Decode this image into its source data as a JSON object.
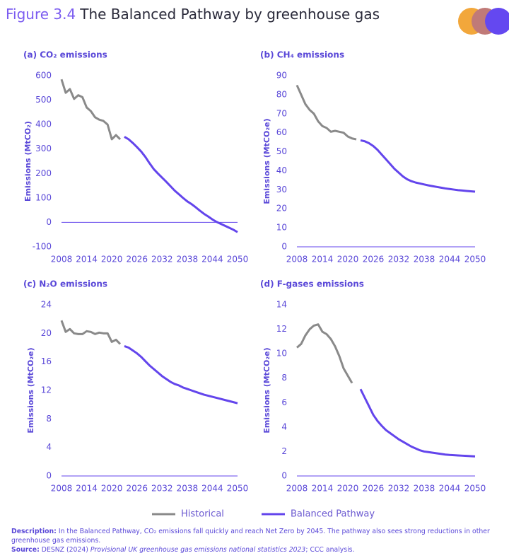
{
  "figure": {
    "label": "Figure 3.4",
    "title": "The Balanced Pathway by greenhouse gas"
  },
  "chart_data": [
    {
      "type": "line",
      "title": "(a) CO₂ emissions",
      "y_label": "Emissions (MtCO₂)",
      "x": [
        2008,
        2009,
        2010,
        2011,
        2012,
        2013,
        2014,
        2015,
        2016,
        2017,
        2018,
        2019,
        2020,
        2021,
        2022,
        2023,
        2024,
        2025,
        2026,
        2027,
        2028,
        2029,
        2030,
        2031,
        2032,
        2033,
        2034,
        2035,
        2036,
        2037,
        2038,
        2039,
        2040,
        2041,
        2042,
        2043,
        2044,
        2045,
        2046,
        2047,
        2048,
        2049,
        2050
      ],
      "xlim": [
        2008,
        2050
      ],
      "xticks": [
        2008,
        2014,
        2020,
        2026,
        2032,
        2038,
        2044,
        2050
      ],
      "ylim": [
        -100,
        600
      ],
      "yticks": [
        -100,
        0,
        100,
        200,
        300,
        400,
        500,
        600
      ],
      "series": [
        {
          "name": "Historical",
          "color": "#8a8a8a",
          "values": [
            585,
            530,
            545,
            505,
            520,
            512,
            470,
            455,
            430,
            420,
            415,
            400,
            340,
            357,
            340,
            null,
            null,
            null,
            null,
            null,
            null,
            null,
            null,
            null,
            null,
            null,
            null,
            null,
            null,
            null,
            null,
            null,
            null,
            null,
            null,
            null,
            null,
            null,
            null,
            null,
            null,
            null,
            null
          ]
        },
        {
          "name": "Balanced Pathway",
          "color": "#6345ec",
          "values": [
            null,
            null,
            null,
            null,
            null,
            null,
            null,
            null,
            null,
            null,
            null,
            null,
            null,
            null,
            null,
            350,
            340,
            325,
            308,
            290,
            268,
            242,
            218,
            200,
            183,
            166,
            148,
            130,
            115,
            100,
            86,
            75,
            62,
            48,
            35,
            24,
            12,
            2,
            -6,
            -14,
            -22,
            -30,
            -40
          ]
        }
      ]
    },
    {
      "type": "line",
      "title": "(b) CH₄ emissions",
      "y_label": "Emissions (MtCO₂e)",
      "x": [
        2008,
        2009,
        2010,
        2011,
        2012,
        2013,
        2014,
        2015,
        2016,
        2017,
        2018,
        2019,
        2020,
        2021,
        2022,
        2023,
        2024,
        2025,
        2026,
        2027,
        2028,
        2029,
        2030,
        2031,
        2032,
        2033,
        2034,
        2035,
        2036,
        2037,
        2038,
        2039,
        2040,
        2041,
        2042,
        2043,
        2044,
        2045,
        2046,
        2047,
        2048,
        2049,
        2050
      ],
      "xlim": [
        2008,
        2050
      ],
      "xticks": [
        2008,
        2014,
        2020,
        2026,
        2032,
        2038,
        2044,
        2050
      ],
      "ylim": [
        0,
        90
      ],
      "yticks": [
        0,
        10,
        20,
        30,
        40,
        50,
        60,
        70,
        80,
        90
      ],
      "series": [
        {
          "name": "Historical",
          "color": "#8a8a8a",
          "values": [
            85,
            80,
            75,
            72,
            70,
            66,
            63.5,
            62.5,
            60.5,
            61,
            60.5,
            60,
            58,
            57,
            56.5,
            null,
            null,
            null,
            null,
            null,
            null,
            null,
            null,
            null,
            null,
            null,
            null,
            null,
            null,
            null,
            null,
            null,
            null,
            null,
            null,
            null,
            null,
            null,
            null,
            null,
            null,
            null,
            null
          ]
        },
        {
          "name": "Balanced Pathway",
          "color": "#6345ec",
          "values": [
            null,
            null,
            null,
            null,
            null,
            null,
            null,
            null,
            null,
            null,
            null,
            null,
            null,
            null,
            null,
            56,
            55.5,
            54.5,
            53,
            51,
            48.5,
            46,
            43.5,
            41,
            39,
            37,
            35.5,
            34.5,
            33.8,
            33.3,
            32.8,
            32.3,
            31.9,
            31.5,
            31.1,
            30.7,
            30.4,
            30.1,
            29.8,
            29.6,
            29.4,
            29.2,
            29
          ]
        }
      ]
    },
    {
      "type": "line",
      "title": "(c) N₂O emissions",
      "y_label": "Emissions (MtCO₂e)",
      "x": [
        2008,
        2009,
        2010,
        2011,
        2012,
        2013,
        2014,
        2015,
        2016,
        2017,
        2018,
        2019,
        2020,
        2021,
        2022,
        2023,
        2024,
        2025,
        2026,
        2027,
        2028,
        2029,
        2030,
        2031,
        2032,
        2033,
        2034,
        2035,
        2036,
        2037,
        2038,
        2039,
        2040,
        2041,
        2042,
        2043,
        2044,
        2045,
        2046,
        2047,
        2048,
        2049,
        2050
      ],
      "xlim": [
        2008,
        2050
      ],
      "xticks": [
        2008,
        2014,
        2020,
        2026,
        2032,
        2038,
        2044,
        2050
      ],
      "ylim": [
        0,
        24
      ],
      "yticks": [
        0,
        4,
        8,
        12,
        16,
        20,
        24
      ],
      "series": [
        {
          "name": "Historical",
          "color": "#8a8a8a",
          "values": [
            21.8,
            20.2,
            20.6,
            20.0,
            19.9,
            19.9,
            20.3,
            20.2,
            19.9,
            20.1,
            20.0,
            20.0,
            18.8,
            19.1,
            18.5,
            null,
            null,
            null,
            null,
            null,
            null,
            null,
            null,
            null,
            null,
            null,
            null,
            null,
            null,
            null,
            null,
            null,
            null,
            null,
            null,
            null,
            null,
            null,
            null,
            null,
            null,
            null,
            null
          ]
        },
        {
          "name": "Balanced Pathway",
          "color": "#6345ec",
          "values": [
            null,
            null,
            null,
            null,
            null,
            null,
            null,
            null,
            null,
            null,
            null,
            null,
            null,
            null,
            null,
            18.2,
            18.0,
            17.6,
            17.2,
            16.7,
            16.1,
            15.5,
            15.0,
            14.5,
            14.0,
            13.6,
            13.2,
            12.9,
            12.7,
            12.4,
            12.2,
            12.0,
            11.8,
            11.6,
            11.4,
            11.25,
            11.1,
            10.95,
            10.8,
            10.65,
            10.5,
            10.35,
            10.2
          ]
        }
      ]
    },
    {
      "type": "line",
      "title": "(d) F-gases emissions",
      "y_label": "Emissions (MtCO₂e)",
      "x": [
        2008,
        2009,
        2010,
        2011,
        2012,
        2013,
        2014,
        2015,
        2016,
        2017,
        2018,
        2019,
        2020,
        2021,
        2022,
        2023,
        2024,
        2025,
        2026,
        2027,
        2028,
        2029,
        2030,
        2031,
        2032,
        2033,
        2034,
        2035,
        2036,
        2037,
        2038,
        2039,
        2040,
        2041,
        2042,
        2043,
        2044,
        2045,
        2046,
        2047,
        2048,
        2049,
        2050
      ],
      "xlim": [
        2008,
        2050
      ],
      "xticks": [
        2008,
        2014,
        2020,
        2026,
        2032,
        2038,
        2044,
        2050
      ],
      "ylim": [
        0,
        14
      ],
      "yticks": [
        0,
        2,
        4,
        6,
        8,
        10,
        12,
        14
      ],
      "series": [
        {
          "name": "Historical",
          "color": "#8a8a8a",
          "values": [
            10.5,
            10.8,
            11.5,
            12.0,
            12.3,
            12.4,
            11.8,
            11.6,
            11.2,
            10.6,
            9.8,
            8.8,
            8.2,
            7.6,
            null,
            null,
            null,
            null,
            null,
            null,
            null,
            null,
            null,
            null,
            null,
            null,
            null,
            null,
            null,
            null,
            null,
            null,
            null,
            null,
            null,
            null,
            null,
            null,
            null,
            null,
            null,
            null,
            null
          ]
        },
        {
          "name": "Balanced Pathway",
          "color": "#6345ec",
          "values": [
            null,
            null,
            null,
            null,
            null,
            null,
            null,
            null,
            null,
            null,
            null,
            null,
            null,
            null,
            null,
            7.1,
            6.4,
            5.7,
            5.0,
            4.5,
            4.1,
            3.75,
            3.5,
            3.25,
            3.0,
            2.8,
            2.6,
            2.4,
            2.25,
            2.1,
            2.0,
            1.95,
            1.9,
            1.85,
            1.8,
            1.75,
            1.72,
            1.7,
            1.68,
            1.66,
            1.64,
            1.62,
            1.6
          ]
        }
      ]
    }
  ],
  "notes": {
    "description_label": "Description:",
    "description": "In the Balanced Pathway, CO₂ emissions fall quickly and reach Net Zero by 2045. The pathway also sees strong reductions in other greenhouse gas emissions.",
    "source_label": "Source:",
    "source_ref": "DESNZ (2024)",
    "source_title": "Provisional UK greenhouse gas emissions national statistics 2023",
    "source_rest": "; CCC analysis."
  }
}
